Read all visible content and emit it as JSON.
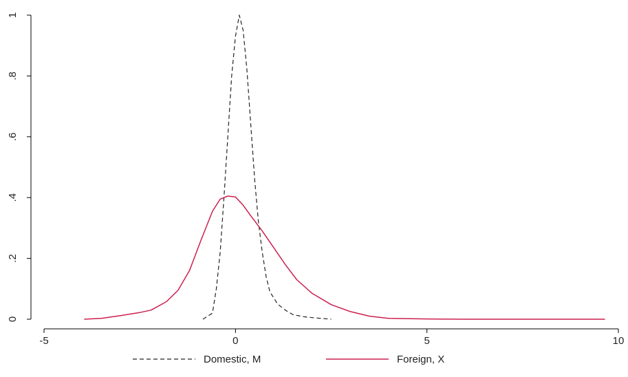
{
  "chart_data": {
    "type": "line",
    "title": "",
    "xlabel": "",
    "ylabel": "",
    "xlim": [
      -5,
      10
    ],
    "ylim": [
      0,
      1
    ],
    "xticks": [
      -5,
      0,
      5,
      10
    ],
    "xtick_labels": [
      "-5",
      "0",
      "5",
      "10"
    ],
    "yticks": [
      0,
      0.2,
      0.4,
      0.6,
      0.8,
      1
    ],
    "ytick_labels": [
      "0",
      ".2",
      ".4",
      ".6",
      ".8",
      "1"
    ],
    "grid": false,
    "legend_position": "bottom",
    "series": [
      {
        "name": "Domestic, M",
        "style": "dashed",
        "color": "#222222",
        "x": [
          -0.85,
          -0.6,
          -0.5,
          -0.4,
          -0.3,
          -0.2,
          -0.1,
          0.0,
          0.1,
          0.2,
          0.3,
          0.4,
          0.5,
          0.6,
          0.7,
          0.8,
          0.9,
          1.1,
          1.3,
          1.5,
          1.8,
          2.1,
          2.5
        ],
        "y": [
          0.0,
          0.02,
          0.1,
          0.22,
          0.4,
          0.6,
          0.8,
          0.93,
          1.0,
          0.95,
          0.82,
          0.64,
          0.46,
          0.32,
          0.22,
          0.14,
          0.09,
          0.05,
          0.03,
          0.015,
          0.008,
          0.004,
          0.0
        ]
      },
      {
        "name": "Foreign, X",
        "style": "solid",
        "color": "#cc1f4d",
        "x": [
          -3.95,
          -3.5,
          -3.0,
          -2.5,
          -2.2,
          -1.8,
          -1.5,
          -1.2,
          -0.9,
          -0.6,
          -0.4,
          -0.2,
          0.0,
          0.2,
          0.4,
          0.7,
          1.0,
          1.3,
          1.6,
          2.0,
          2.5,
          3.0,
          3.5,
          4.0,
          5.0,
          6.0,
          7.0,
          8.0,
          9.0,
          9.65
        ],
        "y": [
          0.0,
          0.003,
          0.012,
          0.022,
          0.03,
          0.058,
          0.095,
          0.16,
          0.26,
          0.355,
          0.395,
          0.405,
          0.402,
          0.375,
          0.34,
          0.29,
          0.235,
          0.18,
          0.13,
          0.085,
          0.048,
          0.025,
          0.01,
          0.003,
          0.001,
          0.0,
          0.0,
          0.0,
          0.0,
          0.0
        ]
      }
    ]
  }
}
